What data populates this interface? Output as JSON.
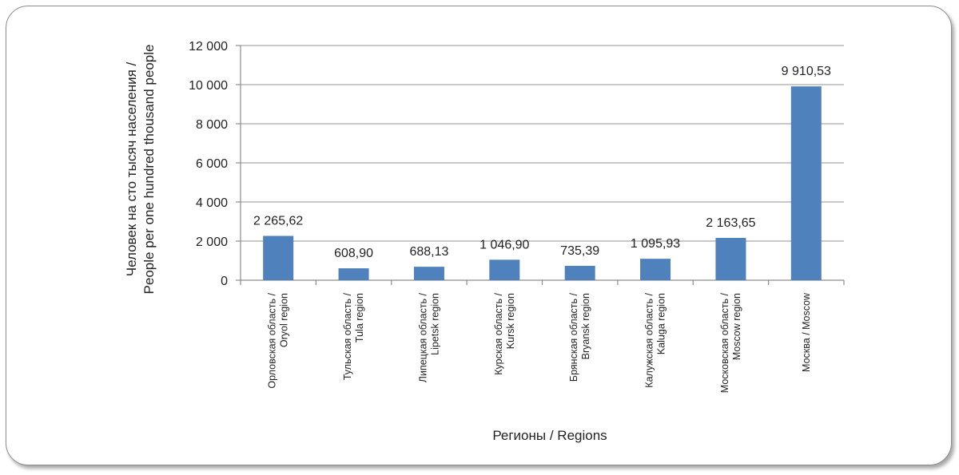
{
  "chart_data": {
    "type": "bar",
    "categories": [
      [
        "Орловская область /",
        "Oryol region"
      ],
      [
        "Тульская область /",
        "Tula region"
      ],
      [
        "Липецкая область /",
        "Lipetsk region"
      ],
      [
        "Курская область /",
        "Kursk region"
      ],
      [
        "Брянская область /",
        "Bryansk region"
      ],
      [
        "Калужская область /",
        "Kaluga region"
      ],
      [
        "Московская область /",
        "Moscow region"
      ],
      [
        "Москва / Moscow"
      ]
    ],
    "values": [
      2265.62,
      608.9,
      688.13,
      1046.9,
      735.39,
      1095.93,
      2163.65,
      9910.53
    ],
    "data_labels": [
      "2 265,62",
      "608,90",
      "688,13",
      "1 046,90",
      "735,39",
      "1 095,93",
      "2 163,65",
      "9 910,53"
    ],
    "ylim": [
      0,
      12000
    ],
    "yticks": [
      0,
      2000,
      4000,
      6000,
      8000,
      10000,
      12000
    ],
    "ytick_labels": [
      "0",
      "2 000",
      "4 000",
      "6 000",
      "8 000",
      "10 000",
      "12 000"
    ],
    "ylabel": [
      "Человек на сто тысяч населения /",
      "People per one hundred thousand people"
    ],
    "xlabel": "Регионы / Regions",
    "grid": true,
    "bar_color": "#4f81bd"
  }
}
